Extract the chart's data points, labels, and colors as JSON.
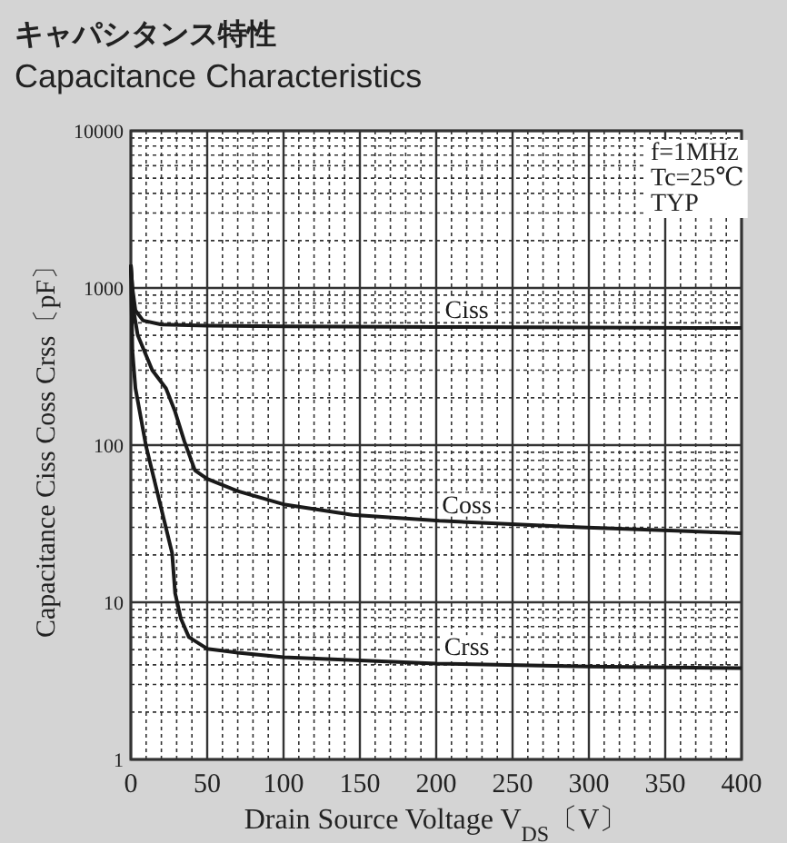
{
  "chart_data": {
    "type": "line",
    "title": "キャパシタンス特性",
    "subtitle": "Capacitance Characteristics",
    "xlabel": "Drain Source Voltage V$_{DS}$〔V〕",
    "ylabel": "Capacitance  Ciss Coss Crss〔pF〕",
    "annotations": [
      "f=1MHz",
      "Tc=25℃",
      "TYP"
    ],
    "log": "y",
    "grid": true,
    "line_style": "solid",
    "marker": "none",
    "xlim": [
      0,
      400
    ],
    "xticks": [
      0,
      50,
      100,
      150,
      200,
      250,
      300,
      350,
      400
    ],
    "ylim": [
      1,
      10000
    ],
    "yticks": [
      1,
      10,
      100,
      1000,
      10000
    ],
    "series": [
      {
        "name": "Ciss",
        "color": "#1a1a1a",
        "x": [
          0,
          1,
          3,
          8,
          20,
          50,
          100,
          200,
          300,
          400
        ],
        "values": [
          1400,
          1000,
          720,
          620,
          585,
          575,
          570,
          565,
          560,
          556
        ]
      },
      {
        "name": "Coss",
        "color": "#1a1a1a",
        "x": [
          0,
          2,
          4.5,
          14,
          23,
          29,
          35,
          42,
          50,
          70,
          100,
          145,
          202,
          295,
          400
        ],
        "values": [
          1400,
          700,
          500,
          300,
          230,
          163,
          106,
          69,
          61,
          51,
          42,
          36,
          33,
          30,
          27.5
        ]
      },
      {
        "name": "Crss",
        "color": "#1a1a1a",
        "x": [
          0,
          1,
          3,
          10,
          19.5,
          27,
          29,
          32.7,
          38,
          50,
          70,
          100,
          200,
          300,
          400
        ],
        "values": [
          1400,
          400,
          230,
          98,
          41,
          20.6,
          11.4,
          7.9,
          6,
          5.06,
          4.78,
          4.47,
          4.07,
          3.9,
          3.81
        ]
      }
    ]
  }
}
